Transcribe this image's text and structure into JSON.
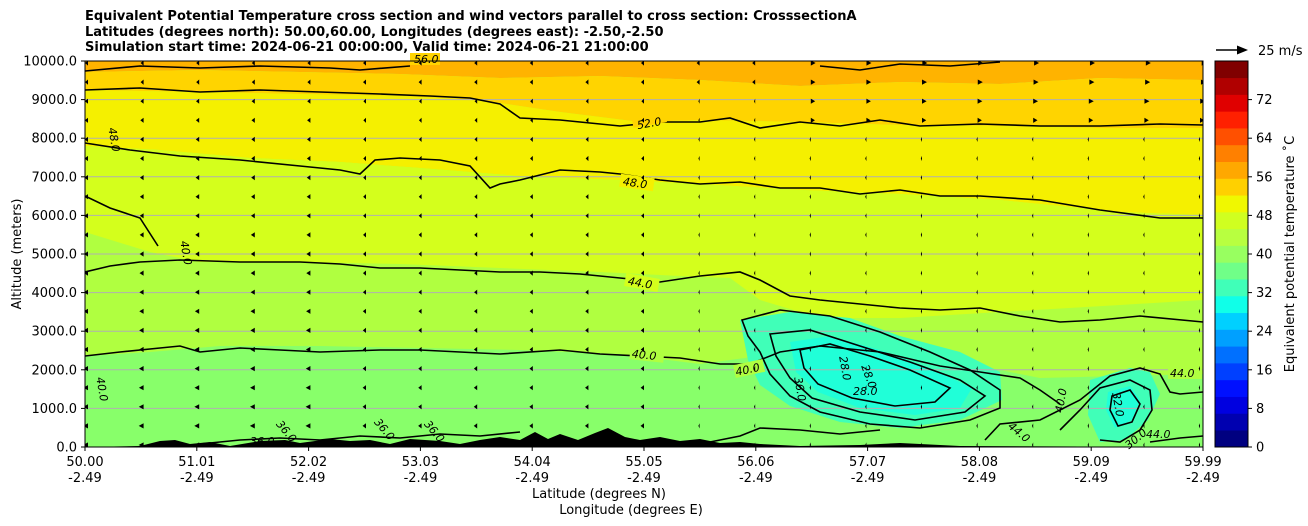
{
  "chart_data": {
    "type": "contour",
    "title_lines": [
      "Equivalent Potential Temperature cross section and wind vectors parallel to cross section: CrosssectionA",
      "Latitudes (degrees north): 50.00,60.00, Longitudes (degrees east): -2.50,-2.50",
      "Simulation start time: 2024-06-21 00:00:00, Valid time: 2024-06-21 21:00:00"
    ],
    "ylabel": "Altitude (meters)",
    "xlabel_lat": "Latitude (degrees N)",
    "xlabel_lon": "Longitude (degrees E)",
    "ylim": [
      0,
      10000
    ],
    "y_ticks": [
      0,
      1000,
      2000,
      3000,
      4000,
      5000,
      6000,
      7000,
      8000,
      9000,
      10000
    ],
    "y_tick_labels": [
      "0.0",
      "1000.0",
      "2000.0",
      "3000.0",
      "4000.0",
      "5000.0",
      "6000.0",
      "7000.0",
      "8000.0",
      "9000.0",
      "10000.0"
    ],
    "x_ticks": [
      {
        "lat": "50.00",
        "lon": "-2.49"
      },
      {
        "lat": "51.01",
        "lon": "-2.49"
      },
      {
        "lat": "52.02",
        "lon": "-2.49"
      },
      {
        "lat": "53.03",
        "lon": "-2.49"
      },
      {
        "lat": "54.04",
        "lon": "-2.49"
      },
      {
        "lat": "55.05",
        "lon": "-2.49"
      },
      {
        "lat": "56.06",
        "lon": "-2.49"
      },
      {
        "lat": "57.07",
        "lon": "-2.49"
      },
      {
        "lat": "58.08",
        "lon": "-2.49"
      },
      {
        "lat": "59.09",
        "lon": "-2.49"
      },
      {
        "lat": "59.99",
        "lon": "-2.49"
      }
    ],
    "colorbar": {
      "label": "Equivalent potential temperature $^\\circ$C",
      "label_text": "Equivalent potential temperature ˚C",
      "range": [
        0,
        80
      ],
      "ticks": [
        0,
        8,
        16,
        24,
        32,
        40,
        48,
        56,
        64,
        72
      ],
      "colors": [
        "#000080",
        "#0000b0",
        "#0000e0",
        "#0010ff",
        "#0040ff",
        "#0070ff",
        "#00a0ff",
        "#00d0ff",
        "#10ffe8",
        "#40ffb8",
        "#70ff88",
        "#98ff60",
        "#b8ff40",
        "#d0ff20",
        "#f0f800",
        "#ffd000",
        "#ffa800",
        "#ff8000",
        "#ff5000",
        "#ff2000",
        "#e00000",
        "#b00000",
        "#800000"
      ]
    },
    "wind_reference": {
      "label": "25 m/s",
      "speed": 25
    },
    "contour_labels": [
      "30.0",
      "32.0",
      "36.0",
      "40.0",
      "44.0",
      "48.0",
      "52.0",
      "56.0",
      "28.0"
    ],
    "contour_levels": [
      28,
      32,
      36,
      40,
      44,
      48,
      52,
      56
    ],
    "bands": [
      {
        "range": [
          56,
          60
        ],
        "color": "#ffb300",
        "region": "top above ~9700 m"
      },
      {
        "range": [
          52,
          56
        ],
        "color": "#ffd400",
        "region": "~8200-9700 m"
      },
      {
        "range": [
          48,
          52
        ],
        "color": "#f5f000",
        "region": "~6000-8200 m"
      },
      {
        "range": [
          44,
          48
        ],
        "color": "#d4ff1c",
        "region": "~4000-6000 m"
      },
      {
        "range": [
          40,
          44
        ],
        "color": "#b0ff40",
        "region": "~2000-4000 m"
      },
      {
        "range": [
          36,
          40
        ],
        "color": "#88ff6a",
        "region": "~500-2000 m"
      },
      {
        "range": [
          28,
          36
        ],
        "color": "#20ffd8",
        "region": "low-level cores near 56.5-58 N and 59.5 N"
      }
    ]
  }
}
